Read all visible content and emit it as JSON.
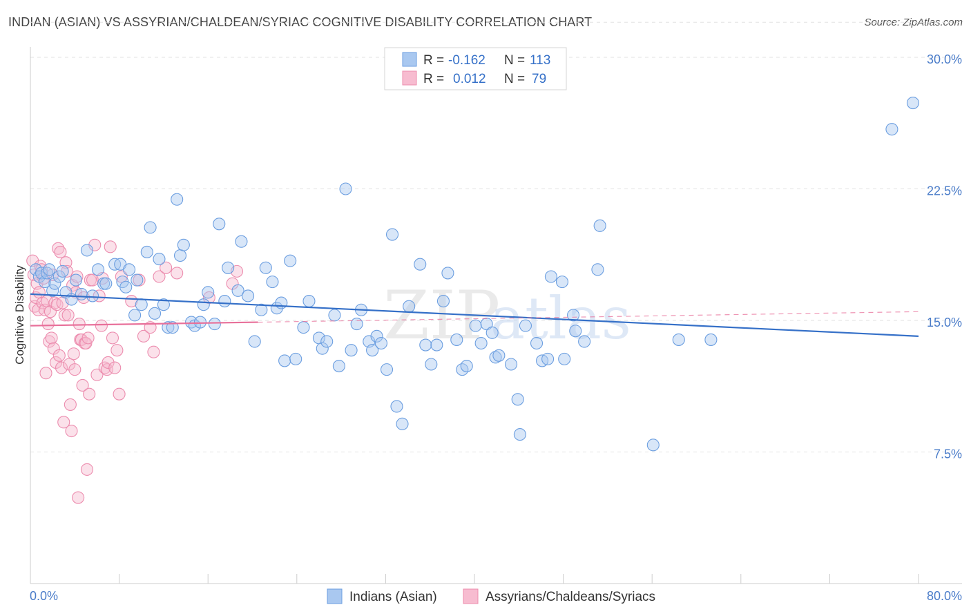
{
  "header": {
    "title": "INDIAN (ASIAN) VS ASSYRIAN/CHALDEAN/SYRIAC COGNITIVE DISABILITY CORRELATION CHART",
    "source": "Source: ZipAtlas.com"
  },
  "watermark": {
    "zip": "ZIP",
    "atlas": "atlas"
  },
  "colors": {
    "blue_fill": "#a9c8f0",
    "blue_stroke": "#6b9ee0",
    "blue_line": "#3570c8",
    "pink_fill": "#f7bcd0",
    "pink_stroke": "#ec8cae",
    "pink_line": "#e8709a",
    "axis_label": "#4a7cc9",
    "grid": "#e2e2e2"
  },
  "legend": {
    "rows": [
      {
        "r_label": "R =",
        "r_value": "-0.162",
        "n_label": "N =",
        "n_value": "113"
      },
      {
        "r_label": "R =",
        "r_value": "0.012",
        "n_label": "N =",
        "n_value": "79"
      }
    ]
  },
  "bottom_legend": {
    "items": [
      "Indians (Asian)",
      "Assyrians/Chaldeans/Syriacs"
    ]
  },
  "chart_data": {
    "type": "scatter",
    "title": "INDIAN (ASIAN) VS ASSYRIAN/CHALDEAN/SYRIAC COGNITIVE DISABILITY CORRELATION CHART",
    "xlabel": "",
    "ylabel": "Cognitive Disability",
    "xlim": [
      0,
      80
    ],
    "ylim": [
      0,
      32
    ],
    "x_tick_labels": [
      "0.0%",
      "80.0%"
    ],
    "y_ticks": [
      7.5,
      15.0,
      22.5,
      30.0
    ],
    "y_tick_labels": [
      "7.5%",
      "15.0%",
      "22.5%",
      "30.0%"
    ],
    "grid": true,
    "legend_position": "top-center",
    "series": [
      {
        "name": "Indians (Asian)",
        "r": -0.162,
        "n": 113,
        "trend": {
          "x0": 0,
          "y0": 16.5,
          "x1": 80,
          "y1": 14.1
        },
        "points": [
          [
            0.5,
            17.9
          ],
          [
            0.8,
            17.5
          ],
          [
            1.0,
            17.7
          ],
          [
            1.3,
            17.2
          ],
          [
            1.5,
            17.7
          ],
          [
            1.7,
            17.9
          ],
          [
            2.0,
            16.7
          ],
          [
            2.2,
            17.1
          ],
          [
            2.6,
            17.5
          ],
          [
            2.9,
            17.8
          ],
          [
            3.2,
            16.6
          ],
          [
            3.7,
            16.2
          ],
          [
            4.1,
            17.3
          ],
          [
            4.6,
            16.5
          ],
          [
            5.1,
            19.0
          ],
          [
            5.6,
            16.4
          ],
          [
            6.1,
            17.9
          ],
          [
            6.6,
            17.1
          ],
          [
            6.8,
            17.1
          ],
          [
            7.6,
            18.2
          ],
          [
            8.1,
            18.2
          ],
          [
            8.3,
            17.2
          ],
          [
            8.6,
            16.9
          ],
          [
            8.9,
            17.9
          ],
          [
            9.4,
            15.3
          ],
          [
            9.6,
            17.3
          ],
          [
            10.0,
            15.9
          ],
          [
            10.5,
            18.9
          ],
          [
            10.8,
            20.3
          ],
          [
            11.2,
            15.4
          ],
          [
            11.6,
            18.5
          ],
          [
            12.0,
            15.9
          ],
          [
            12.4,
            14.6
          ],
          [
            12.8,
            14.6
          ],
          [
            13.2,
            21.9
          ],
          [
            13.5,
            18.7
          ],
          [
            13.8,
            19.3
          ],
          [
            14.5,
            14.9
          ],
          [
            14.8,
            14.7
          ],
          [
            15.3,
            14.9
          ],
          [
            15.6,
            15.9
          ],
          [
            16.0,
            16.6
          ],
          [
            16.6,
            14.8
          ],
          [
            17.0,
            20.5
          ],
          [
            17.5,
            16.1
          ],
          [
            17.8,
            18.0
          ],
          [
            18.7,
            16.7
          ],
          [
            19.0,
            19.5
          ],
          [
            19.6,
            16.4
          ],
          [
            20.2,
            13.8
          ],
          [
            20.8,
            15.6
          ],
          [
            21.2,
            18.0
          ],
          [
            21.8,
            17.2
          ],
          [
            22.2,
            15.7
          ],
          [
            22.6,
            16.0
          ],
          [
            22.9,
            12.7
          ],
          [
            23.4,
            18.4
          ],
          [
            23.9,
            12.8
          ],
          [
            24.6,
            14.6
          ],
          [
            25.1,
            16.1
          ],
          [
            26.0,
            14.0
          ],
          [
            26.3,
            13.4
          ],
          [
            26.7,
            13.8
          ],
          [
            27.4,
            15.3
          ],
          [
            27.8,
            12.4
          ],
          [
            28.4,
            22.5
          ],
          [
            28.9,
            13.3
          ],
          [
            29.4,
            14.8
          ],
          [
            29.8,
            15.6
          ],
          [
            30.5,
            13.8
          ],
          [
            30.8,
            13.3
          ],
          [
            31.2,
            14.1
          ],
          [
            31.6,
            13.7
          ],
          [
            32.1,
            12.2
          ],
          [
            32.6,
            19.9
          ],
          [
            33.0,
            10.1
          ],
          [
            33.5,
            9.1
          ],
          [
            34.1,
            15.8
          ],
          [
            35.1,
            18.2
          ],
          [
            35.6,
            13.6
          ],
          [
            36.1,
            12.5
          ],
          [
            36.6,
            13.6
          ],
          [
            37.2,
            16.1
          ],
          [
            37.6,
            17.7
          ],
          [
            38.4,
            13.9
          ],
          [
            38.9,
            12.2
          ],
          [
            39.3,
            12.4
          ],
          [
            40.1,
            14.7
          ],
          [
            40.6,
            13.7
          ],
          [
            41.1,
            14.8
          ],
          [
            41.6,
            14.3
          ],
          [
            41.9,
            12.9
          ],
          [
            42.2,
            13.0
          ],
          [
            43.3,
            12.5
          ],
          [
            43.9,
            10.5
          ],
          [
            44.1,
            8.5
          ],
          [
            44.6,
            14.7
          ],
          [
            45.6,
            13.7
          ],
          [
            46.1,
            12.7
          ],
          [
            46.6,
            12.8
          ],
          [
            46.9,
            17.5
          ],
          [
            47.9,
            17.2
          ],
          [
            48.1,
            12.8
          ],
          [
            48.9,
            15.3
          ],
          [
            49.1,
            14.4
          ],
          [
            49.9,
            13.8
          ],
          [
            51.1,
            17.9
          ],
          [
            51.3,
            20.4
          ],
          [
            56.1,
            7.9
          ],
          [
            58.4,
            13.9
          ],
          [
            61.3,
            13.9
          ],
          [
            77.6,
            25.9
          ],
          [
            79.5,
            27.4
          ]
        ]
      },
      {
        "name": "Assyrians/Chaldeans/Syriacs",
        "r": 0.012,
        "n": 79,
        "trend_solid": {
          "x0": 0,
          "y0": 14.7,
          "x1": 20.5,
          "y1": 14.9
        },
        "trend_dashed": {
          "x0": 20.5,
          "y0": 14.9,
          "x1": 80,
          "y1": 15.5
        },
        "points": [
          [
            0.2,
            18.4
          ],
          [
            0.3,
            17.6
          ],
          [
            0.4,
            15.8
          ],
          [
            0.5,
            16.3
          ],
          [
            0.6,
            17.1
          ],
          [
            0.7,
            15.6
          ],
          [
            0.8,
            16.6
          ],
          [
            0.9,
            18.1
          ],
          [
            1.0,
            17.9
          ],
          [
            1.1,
            16.0
          ],
          [
            1.2,
            17.4
          ],
          [
            1.3,
            15.6
          ],
          [
            1.4,
            12.0
          ],
          [
            1.5,
            16.1
          ],
          [
            1.6,
            14.8
          ],
          [
            1.7,
            13.8
          ],
          [
            1.8,
            15.5
          ],
          [
            1.9,
            14.0
          ],
          [
            2.0,
            17.6
          ],
          [
            2.1,
            13.4
          ],
          [
            2.2,
            16.0
          ],
          [
            2.3,
            12.6
          ],
          [
            2.4,
            15.9
          ],
          [
            2.5,
            19.1
          ],
          [
            2.6,
            13.0
          ],
          [
            2.7,
            18.9
          ],
          [
            2.8,
            12.3
          ],
          [
            2.9,
            16.0
          ],
          [
            3.0,
            9.2
          ],
          [
            3.1,
            15.3
          ],
          [
            3.2,
            18.3
          ],
          [
            3.3,
            17.8
          ],
          [
            3.4,
            15.3
          ],
          [
            3.5,
            12.5
          ],
          [
            3.6,
            10.2
          ],
          [
            3.7,
            8.7
          ],
          [
            3.8,
            17.0
          ],
          [
            3.9,
            13.1
          ],
          [
            4.0,
            12.2
          ],
          [
            4.1,
            16.6
          ],
          [
            4.2,
            17.5
          ],
          [
            4.3,
            4.9
          ],
          [
            4.4,
            14.8
          ],
          [
            4.5,
            13.9
          ],
          [
            4.6,
            13.9
          ],
          [
            4.7,
            11.3
          ],
          [
            4.8,
            16.3
          ],
          [
            4.9,
            13.7
          ],
          [
            5.0,
            13.7
          ],
          [
            5.1,
            6.5
          ],
          [
            5.2,
            14.0
          ],
          [
            5.3,
            10.8
          ],
          [
            5.4,
            17.3
          ],
          [
            5.6,
            17.3
          ],
          [
            5.8,
            19.3
          ],
          [
            6.0,
            11.9
          ],
          [
            6.2,
            16.4
          ],
          [
            6.4,
            14.7
          ],
          [
            6.5,
            17.4
          ],
          [
            6.7,
            12.3
          ],
          [
            6.9,
            12.2
          ],
          [
            7.0,
            12.6
          ],
          [
            7.2,
            19.2
          ],
          [
            7.4,
            14.0
          ],
          [
            7.6,
            12.3
          ],
          [
            7.8,
            13.3
          ],
          [
            8.0,
            10.8
          ],
          [
            8.2,
            17.5
          ],
          [
            9.1,
            16.1
          ],
          [
            9.8,
            17.3
          ],
          [
            10.2,
            14.1
          ],
          [
            10.8,
            14.6
          ],
          [
            11.1,
            13.2
          ],
          [
            11.6,
            17.5
          ],
          [
            12.2,
            18.0
          ],
          [
            13.2,
            17.7
          ],
          [
            16.1,
            16.3
          ],
          [
            18.2,
            17.1
          ],
          [
            18.6,
            17.8
          ]
        ]
      }
    ]
  }
}
